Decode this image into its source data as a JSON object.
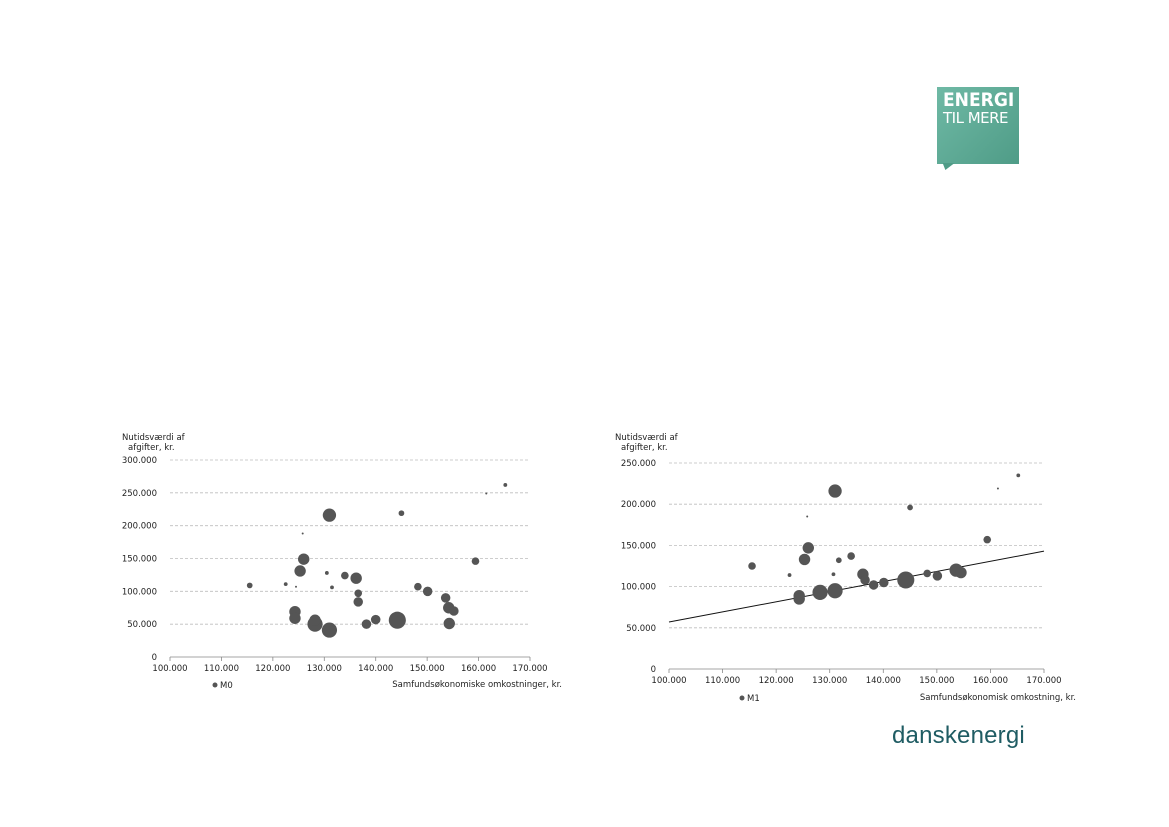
{
  "logo": {
    "line1": "ENERGI",
    "line2": "TIL MERE",
    "color": "#5aa892"
  },
  "footer": {
    "brand": "danskenergi",
    "color": "#1f5c63"
  },
  "chart_data": [
    {
      "type": "scatter",
      "id": "m0",
      "ylabel_lines": [
        "Nutidsværdi af",
        "afgifter, kr."
      ],
      "xlabel": "Samfundsøkonomiske omkostninger, kr.",
      "xlim": [
        100000,
        170000
      ],
      "ylim": [
        0,
        300000
      ],
      "x_ticks": [
        100000,
        110000,
        120000,
        130000,
        140000,
        150000,
        160000,
        170000
      ],
      "y_ticks": [
        0,
        50000,
        100000,
        150000,
        200000,
        250000,
        300000
      ],
      "x_tick_labels": [
        "100.000",
        "110.000",
        "120.000",
        "130.000",
        "140.000",
        "150.000",
        "160.000",
        "170.000"
      ],
      "y_tick_labels": [
        "0",
        "50.000",
        "100.000",
        "150.000",
        "200.000",
        "250.000",
        "300.000"
      ],
      "grid": "horizontal dashed",
      "legend": {
        "position": "bottom-left",
        "label": "M0"
      },
      "marker_color": "#555555",
      "points": [
        {
          "x": 115500,
          "y": 109000,
          "s": 3
        },
        {
          "x": 122500,
          "y": 111000,
          "s": 2
        },
        {
          "x": 124500,
          "y": 107000,
          "s": 1
        },
        {
          "x": 124300,
          "y": 69000,
          "s": 6
        },
        {
          "x": 124300,
          "y": 59000,
          "s": 6
        },
        {
          "x": 125300,
          "y": 131000,
          "s": 6
        },
        {
          "x": 125800,
          "y": 188000,
          "s": 1
        },
        {
          "x": 126000,
          "y": 149000,
          "s": 6
        },
        {
          "x": 128200,
          "y": 50000,
          "s": 8
        },
        {
          "x": 128200,
          "y": 56000,
          "s": 6
        },
        {
          "x": 130500,
          "y": 128000,
          "s": 2
        },
        {
          "x": 131000,
          "y": 216000,
          "s": 7
        },
        {
          "x": 131000,
          "y": 41000,
          "s": 8
        },
        {
          "x": 131500,
          "y": 106000,
          "s": 2
        },
        {
          "x": 134000,
          "y": 124000,
          "s": 4
        },
        {
          "x": 136200,
          "y": 120000,
          "s": 6
        },
        {
          "x": 136600,
          "y": 97000,
          "s": 4
        },
        {
          "x": 136600,
          "y": 84000,
          "s": 5
        },
        {
          "x": 138200,
          "y": 50000,
          "s": 5
        },
        {
          "x": 140000,
          "y": 57000,
          "s": 5
        },
        {
          "x": 144200,
          "y": 56000,
          "s": 9
        },
        {
          "x": 145000,
          "y": 219000,
          "s": 3
        },
        {
          "x": 148200,
          "y": 107000,
          "s": 4
        },
        {
          "x": 150100,
          "y": 100000,
          "s": 5
        },
        {
          "x": 153600,
          "y": 90000,
          "s": 5
        },
        {
          "x": 154200,
          "y": 75000,
          "s": 6
        },
        {
          "x": 154300,
          "y": 51000,
          "s": 6
        },
        {
          "x": 155200,
          "y": 70000,
          "s": 5
        },
        {
          "x": 159400,
          "y": 146000,
          "s": 4
        },
        {
          "x": 161500,
          "y": 249000,
          "s": 1
        },
        {
          "x": 165200,
          "y": 262000,
          "s": 2
        }
      ]
    },
    {
      "type": "scatter",
      "id": "m1",
      "ylabel_lines": [
        "Nutidsværdi af",
        "afgifter, kr."
      ],
      "xlabel": "Samfundsøkonomisk omkostning, kr.",
      "xlim": [
        100000,
        170000
      ],
      "ylim": [
        0,
        250000
      ],
      "x_ticks": [
        100000,
        110000,
        120000,
        130000,
        140000,
        150000,
        160000,
        170000
      ],
      "y_ticks": [
        0,
        50000,
        100000,
        150000,
        200000,
        250000
      ],
      "x_tick_labels": [
        "100.000",
        "110.000",
        "120.000",
        "130.000",
        "140.000",
        "150.000",
        "160.000",
        "170.000"
      ],
      "y_tick_labels": [
        "0",
        "50.000",
        "100.000",
        "150.000",
        "200.000",
        "250.000"
      ],
      "grid": "horizontal dashed",
      "legend": {
        "position": "bottom-left",
        "label": "M1"
      },
      "marker_color": "#555555",
      "trendline": {
        "from": [
          100000,
          57000
        ],
        "to": [
          170000,
          143000
        ]
      },
      "points": [
        {
          "x": 115500,
          "y": 125000,
          "s": 4
        },
        {
          "x": 122500,
          "y": 114000,
          "s": 2
        },
        {
          "x": 124300,
          "y": 89000,
          "s": 6
        },
        {
          "x": 124300,
          "y": 85000,
          "s": 6
        },
        {
          "x": 125300,
          "y": 133000,
          "s": 6
        },
        {
          "x": 125800,
          "y": 185000,
          "s": 1
        },
        {
          "x": 126000,
          "y": 147000,
          "s": 6
        },
        {
          "x": 128200,
          "y": 93000,
          "s": 8
        },
        {
          "x": 130700,
          "y": 115000,
          "s": 2
        },
        {
          "x": 131000,
          "y": 216000,
          "s": 7
        },
        {
          "x": 131000,
          "y": 95000,
          "s": 8
        },
        {
          "x": 131700,
          "y": 132000,
          "s": 3
        },
        {
          "x": 134000,
          "y": 137000,
          "s": 4
        },
        {
          "x": 136200,
          "y": 115000,
          "s": 6
        },
        {
          "x": 136600,
          "y": 108000,
          "s": 5
        },
        {
          "x": 138200,
          "y": 102000,
          "s": 5
        },
        {
          "x": 140100,
          "y": 105000,
          "s": 5
        },
        {
          "x": 144200,
          "y": 108000,
          "s": 9
        },
        {
          "x": 145000,
          "y": 196000,
          "s": 3
        },
        {
          "x": 148200,
          "y": 116000,
          "s": 4
        },
        {
          "x": 150100,
          "y": 113000,
          "s": 5
        },
        {
          "x": 153600,
          "y": 120000,
          "s": 7
        },
        {
          "x": 154500,
          "y": 117000,
          "s": 6
        },
        {
          "x": 159400,
          "y": 157000,
          "s": 4
        },
        {
          "x": 161400,
          "y": 219000,
          "s": 1
        },
        {
          "x": 165200,
          "y": 235000,
          "s": 2
        }
      ]
    }
  ]
}
